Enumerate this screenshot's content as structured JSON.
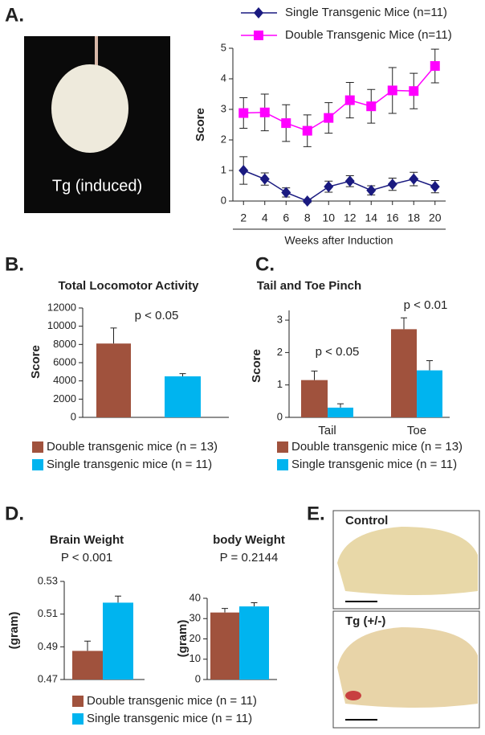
{
  "figure": {
    "panels": [
      "A.",
      "B.",
      "C.",
      "D.",
      "E."
    ],
    "image_a": "Tg (induced)",
    "image_e": [
      "Control",
      "Tg (+/-)"
    ]
  },
  "chart_data": [
    {
      "type": "line",
      "ylabel": "Score",
      "xlabel": "Weeks after Induction",
      "x": [
        2,
        4,
        6,
        8,
        10,
        12,
        14,
        16,
        18,
        20
      ],
      "xlim": [
        1,
        21
      ],
      "xticks": [
        2,
        4,
        6,
        8,
        10,
        12,
        14,
        16,
        18,
        20
      ],
      "ylim": [
        0,
        5
      ],
      "yticks": [
        0,
        1,
        2,
        3,
        4,
        5
      ],
      "series": [
        {
          "name": "Single Transgenic Mice (n=11)",
          "color": "#1a1a80",
          "marker": "diamond",
          "values": [
            1.0,
            0.72,
            0.28,
            0.0,
            0.47,
            0.65,
            0.35,
            0.55,
            0.72,
            0.47
          ],
          "errors": [
            0.45,
            0.2,
            0.15,
            0.05,
            0.18,
            0.18,
            0.15,
            0.2,
            0.22,
            0.2
          ]
        },
        {
          "name": "Double Transgenic Mice (n=11)",
          "color": "#ff00ff",
          "marker": "square",
          "values": [
            2.88,
            2.9,
            2.55,
            2.3,
            2.72,
            3.3,
            3.1,
            3.62,
            3.6,
            4.42
          ],
          "errors": [
            0.5,
            0.6,
            0.6,
            0.52,
            0.5,
            0.58,
            0.55,
            0.75,
            0.58,
            0.55
          ]
        }
      ]
    },
    {
      "type": "bar",
      "title": "Total Locomotor Activity",
      "ylabel": "Score",
      "annotations": [
        "p < 0.05"
      ],
      "ylim": [
        0,
        12000
      ],
      "yticks": [
        0,
        2000,
        4000,
        6000,
        8000,
        10000,
        12000
      ],
      "series": [
        {
          "name": "Double transgenic mice (n = 13)",
          "color": "#a0523d",
          "values": [
            8100
          ],
          "errors": [
            1700
          ]
        },
        {
          "name": "Single transgenic mice (n = 11)",
          "color": "#00b4ef",
          "values": [
            4500
          ],
          "errors": [
            300
          ]
        }
      ]
    },
    {
      "type": "bar",
      "title": "Tail and Toe Pinch",
      "ylabel": "Score",
      "annotations": [
        "p < 0.05",
        "p < 0.01"
      ],
      "categories": [
        "Tail",
        "Toe"
      ],
      "ylim": [
        0,
        3.3
      ],
      "yticks": [
        0,
        1,
        2,
        3
      ],
      "series": [
        {
          "name": "Double transgenic mice (n = 13)",
          "color": "#a0523d",
          "values": [
            1.15,
            2.72
          ],
          "errors": [
            0.28,
            0.35
          ]
        },
        {
          "name": "Single transgenic mice (n = 11)",
          "color": "#00b4ef",
          "values": [
            0.3,
            1.45
          ],
          "errors": [
            0.12,
            0.3
          ]
        }
      ]
    },
    {
      "type": "bar",
      "title": "Brain Weight",
      "subtitle": "P < 0.001",
      "ylabel": "(gram)",
      "ylim": [
        0.47,
        0.53
      ],
      "yticks": [
        0.47,
        0.49,
        0.51,
        0.53
      ],
      "series": [
        {
          "name": "Double transgenic mice (n = 11)",
          "color": "#a0523d",
          "values": [
            0.4875
          ],
          "errors": [
            0.006
          ]
        },
        {
          "name": "Single transgenic mice (n = 11)",
          "color": "#00b4ef",
          "values": [
            0.517
          ],
          "errors": [
            0.004
          ]
        }
      ]
    },
    {
      "type": "bar",
      "title": "body Weight",
      "subtitle": "P = 0.2144",
      "ylabel": "(gram)",
      "ylim": [
        0,
        40
      ],
      "yticks": [
        0,
        10,
        20,
        30,
        40
      ],
      "series": [
        {
          "color": "#a0523d",
          "values": [
            33
          ],
          "errors": [
            2
          ]
        },
        {
          "color": "#00b4ef",
          "values": [
            36
          ],
          "errors": [
            1.8
          ]
        }
      ]
    }
  ]
}
